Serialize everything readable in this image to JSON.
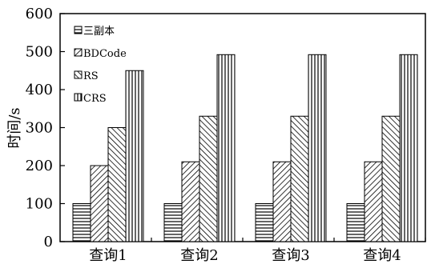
{
  "chart_data": {
    "type": "bar",
    "categories": [
      "查询1",
      "查询2",
      "查询3",
      "查询4"
    ],
    "series": [
      {
        "name": "三副本",
        "values": [
          100,
          100,
          100,
          100
        ],
        "pattern": "horizontal"
      },
      {
        "name": "BDCode",
        "values": [
          200,
          210,
          210,
          210
        ],
        "pattern": "diagonal-right"
      },
      {
        "name": "RS",
        "values": [
          300,
          330,
          330,
          330
        ],
        "pattern": "diagonal-left"
      },
      {
        "name": "CRS",
        "values": [
          450,
          492,
          492,
          492
        ],
        "pattern": "vertical"
      }
    ],
    "title": "",
    "xlabel": "",
    "ylabel": "时间/s",
    "ylim": [
      0,
      600
    ],
    "yticks": [
      0,
      100,
      200,
      300,
      400,
      500,
      600
    ],
    "grid": false,
    "legend": "top-left",
    "colors": {
      "bar_stroke": "#000000",
      "hatch": "#000000",
      "background": "#ffffff"
    }
  }
}
